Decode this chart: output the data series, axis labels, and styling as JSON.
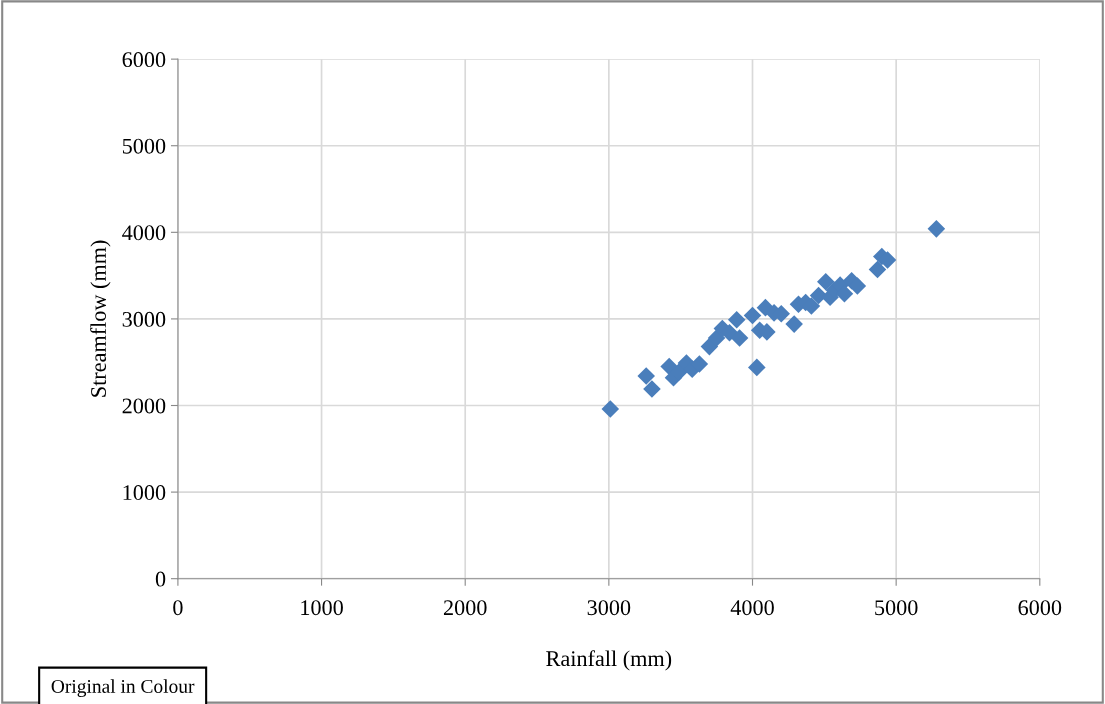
{
  "chart_data": {
    "type": "scatter",
    "xlabel": "Rainfall (mm)",
    "ylabel": "Streamflow (mm)",
    "x": [
      3010,
      3260,
      3300,
      3420,
      3450,
      3490,
      3540,
      3580,
      3630,
      3700,
      3750,
      3790,
      3840,
      3890,
      3910,
      4000,
      4030,
      4050,
      4090,
      4100,
      4150,
      4200,
      4290,
      4320,
      4370,
      4410,
      4460,
      4510,
      4540,
      4570,
      4610,
      4640,
      4690,
      4730,
      4870,
      4900,
      4940,
      5280
    ],
    "series": [
      {
        "color": "#4a7ebb",
        "values": [
          1960,
          2340,
          2190,
          2450,
          2320,
          2390,
          2490,
          2420,
          2480,
          2680,
          2780,
          2890,
          2840,
          2990,
          2780,
          3040,
          2440,
          2870,
          3130,
          2850,
          3070,
          3060,
          2940,
          3170,
          3190,
          3150,
          3270,
          3430,
          3250,
          3330,
          3390,
          3290,
          3440,
          3380,
          3570,
          3720,
          3680,
          4040
        ]
      }
    ],
    "xlim": [
      0,
      6000
    ],
    "xticks": [
      0,
      1000,
      2000,
      3000,
      4000,
      5000,
      6000
    ],
    "ylim": [
      0,
      6000
    ],
    "yticks": [
      0,
      1000,
      2000,
      3000,
      4000,
      5000,
      6000
    ],
    "grid": true,
    "marker": "diamond",
    "annotations": [
      "Original in Colour"
    ]
  }
}
